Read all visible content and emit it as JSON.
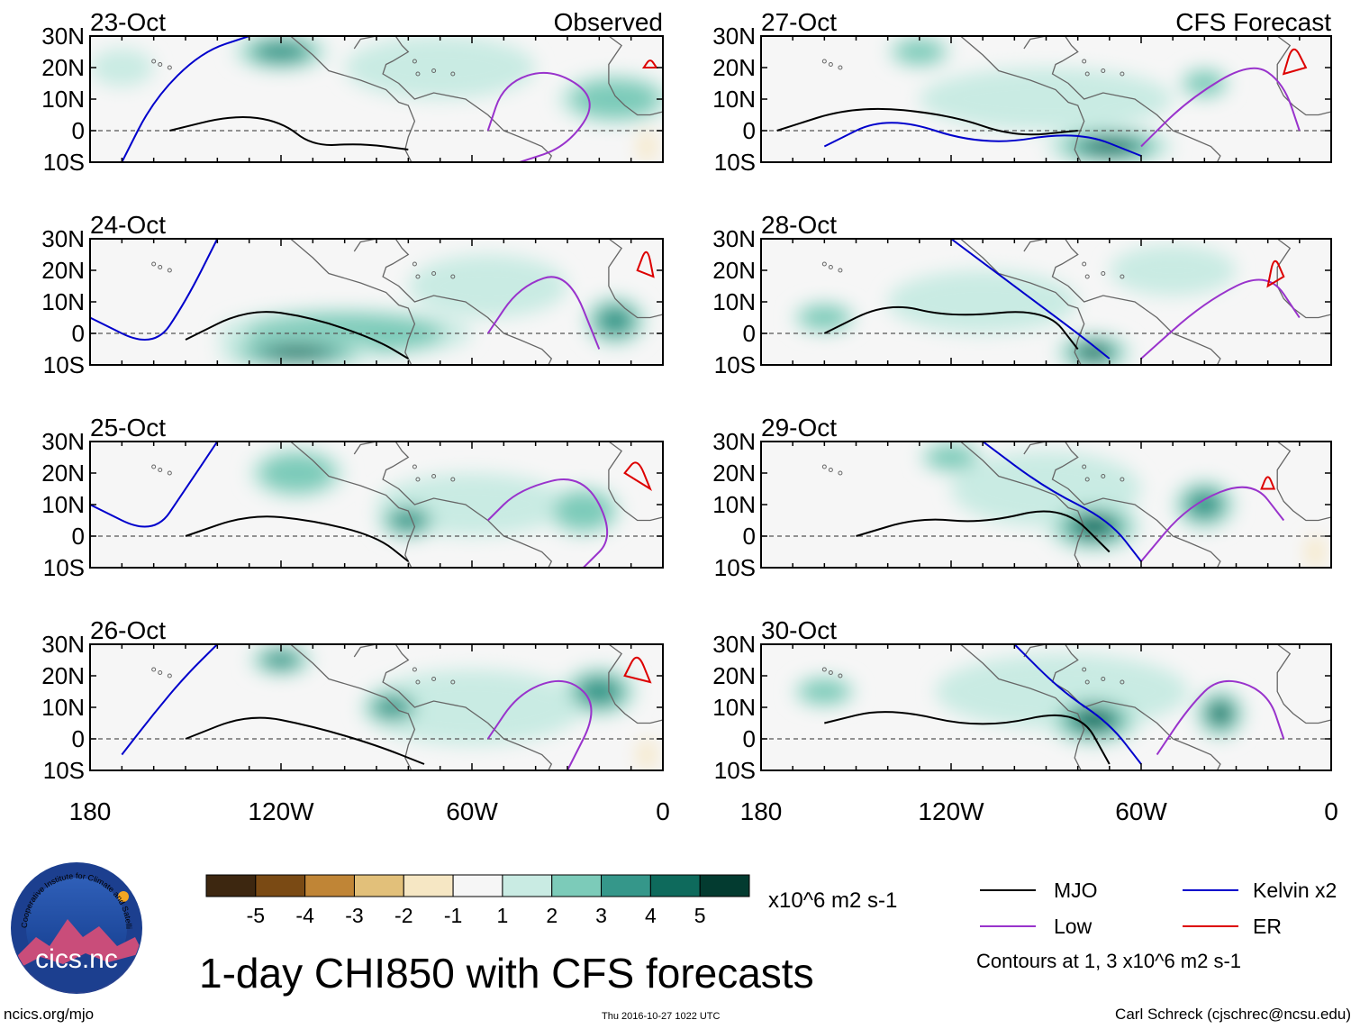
{
  "title": "1-day CHI850 with CFS forecasts",
  "footer": {
    "url": "ncics.org/mjo",
    "timestamp": "Thu 2016-10-27 1022 UTC",
    "author": "Carl Schreck (cjschrec@ncsu.edu)"
  },
  "logo": {
    "text": "cics.nc",
    "ring_text": "Cooperative Institute for Climate and Satellites"
  },
  "chart_data": {
    "type": "map",
    "variable": "1-day CHI850 (velocity potential at 850 hPa)",
    "panels_left_header": "Observed",
    "panels_right_header": "CFS Forecast",
    "observed_dates": [
      "23-Oct",
      "24-Oct",
      "25-Oct",
      "26-Oct"
    ],
    "forecast_dates": [
      "27-Oct",
      "28-Oct",
      "29-Oct",
      "30-Oct"
    ],
    "lat_ticks": [
      "30N",
      "20N",
      "10N",
      "0",
      "10S"
    ],
    "lat_range": [
      -10,
      30
    ],
    "lon_ticks": [
      "180",
      "120W",
      "60W",
      "0"
    ],
    "lon_range": [
      -180,
      0
    ],
    "colorbar": {
      "ticks": [
        "-5",
        "-4",
        "-3",
        "-2",
        "-1",
        "1",
        "2",
        "3",
        "4",
        "5"
      ],
      "units": "x10^6 m2 s-1",
      "colors": [
        "#3d2710",
        "#7a4a14",
        "#c08536",
        "#e2c07a",
        "#f6e7c4",
        "#f6f6f6",
        "#c9ebe3",
        "#7ccbb9",
        "#35978a",
        "#0e6a5c",
        "#033b30"
      ]
    },
    "legend": [
      {
        "name": "MJO",
        "color": "#000000"
      },
      {
        "name": "Kelvin x2",
        "color": "#0000cc"
      },
      {
        "name": "Low",
        "color": "#9933cc"
      },
      {
        "name": "ER",
        "color": "#dd0000"
      }
    ],
    "contour_note": "Contours at 1, 3 x10^6 m2 s-1"
  }
}
